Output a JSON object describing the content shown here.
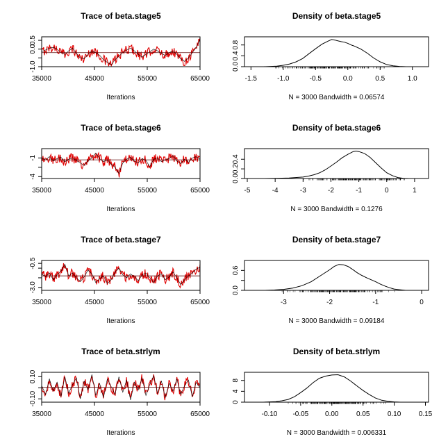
{
  "figure": {
    "background": "#ffffff"
  },
  "chart_data": [
    {
      "type": "line",
      "panel": "trace",
      "title": "Trace of beta.stage5",
      "xlabel": "Iterations",
      "xlim": [
        35000,
        65000
      ],
      "xticks": [
        35000,
        45000,
        55000,
        65000
      ],
      "xtick_labels": [
        "35000",
        "45000",
        "55000",
        "65000"
      ],
      "ylim": [
        -1.0,
        0.7
      ],
      "yticks": [
        -1.0,
        -0.5,
        0.0,
        0.5
      ],
      "ytick_labels": [
        "-1.0",
        "",
        "0.0",
        "0.5"
      ],
      "series": [
        {
          "values": [
            -0.15,
            -0.05,
            0.05,
            0.1,
            0.0,
            -0.2,
            -0.3,
            -0.1,
            0.05,
            -0.25,
            -0.5,
            -0.55,
            -0.3,
            -0.1,
            -0.2,
            -0.35,
            -0.6,
            -0.75,
            -0.9,
            -0.6,
            -0.4,
            -0.2,
            -0.05,
            0.05,
            -0.1,
            -0.3,
            -0.45,
            -0.3,
            -0.15,
            0.0,
            -0.1,
            -0.25,
            -0.35,
            -0.2,
            -0.1,
            -0.3,
            -0.55,
            -0.7,
            -0.5,
            -0.2,
            0.1,
            0.55
          ]
        },
        {
          "values": [
            -0.2,
            -0.2
          ]
        }
      ],
      "colors": [
        "#000000",
        "#e00000"
      ]
    },
    {
      "type": "area",
      "panel": "density",
      "title": "Density of beta.stage5",
      "xlabel": "N = 3000   Bandwidth = 0.06574",
      "xlim": [
        -1.6,
        1.25
      ],
      "xticks": [
        -1.5,
        -1.0,
        -0.5,
        0.0,
        0.5,
        1.0
      ],
      "xtick_labels": [
        "-1.5",
        "-1.0",
        "-0.5",
        "0.0",
        "0.5",
        "1.0"
      ],
      "ylim": [
        0,
        1.1
      ],
      "yticks": [
        0.0,
        0.4,
        0.8
      ],
      "ytick_labels": [
        "0.0",
        "0.4",
        "0.8"
      ],
      "x": [
        -1.3,
        -1.1,
        -1.0,
        -0.9,
        -0.8,
        -0.7,
        -0.6,
        -0.5,
        -0.4,
        -0.3,
        -0.25,
        -0.2,
        -0.15,
        -0.1,
        -0.05,
        0.0,
        0.05,
        0.1,
        0.2,
        0.3,
        0.4,
        0.5,
        0.6,
        0.7,
        0.8,
        0.9
      ],
      "y": [
        0.0,
        0.02,
        0.05,
        0.1,
        0.18,
        0.3,
        0.48,
        0.66,
        0.83,
        0.95,
        1.0,
        0.98,
        0.95,
        0.92,
        0.9,
        0.86,
        0.8,
        0.76,
        0.65,
        0.5,
        0.32,
        0.18,
        0.08,
        0.03,
        0.01,
        0.0
      ],
      "rug": true,
      "colors": [
        "#000000"
      ]
    },
    {
      "type": "line",
      "panel": "trace",
      "title": "Trace of beta.stage6",
      "xlabel": "Iterations",
      "xlim": [
        35000,
        65000
      ],
      "xticks": [
        35000,
        45000,
        55000,
        65000
      ],
      "xtick_labels": [
        "35000",
        "45000",
        "55000",
        "65000"
      ],
      "ylim": [
        -4.3,
        0.5
      ],
      "yticks": [
        -4.0,
        -2.5,
        -1.0
      ],
      "ytick_labels": [
        "-4",
        "",
        "-1"
      ],
      "series": [
        {
          "values": [
            -1.0,
            -1.3,
            -0.8,
            -1.5,
            -1.1,
            -0.9,
            -1.6,
            -1.2,
            -1.0,
            -1.4,
            -1.8,
            -2.2,
            -1.5,
            -1.0,
            -0.2,
            -1.1,
            -1.6,
            -1.3,
            -2.0,
            -2.5,
            -3.5,
            -1.8,
            -1.2,
            -0.9,
            -1.5,
            -1.8,
            -1.1,
            -1.4,
            -2.4,
            -1.2,
            -1.0,
            -1.6,
            -1.3,
            -1.1,
            -0.6,
            -1.5,
            -1.9,
            -1.2,
            -1.7,
            -1.0,
            -0.8,
            -1.2
          ]
        },
        {
          "values": [
            -1.3,
            -1.3
          ]
        }
      ],
      "colors": [
        "#000000",
        "#e00000"
      ]
    },
    {
      "type": "area",
      "panel": "density",
      "title": "Density of beta.stage6",
      "xlabel": "N = 3000   Bandwidth = 0.1276",
      "xlim": [
        -5.1,
        1.5
      ],
      "xticks": [
        -5,
        -4,
        -3,
        -2,
        -1,
        0,
        1
      ],
      "xtick_labels": [
        "-5",
        "-4",
        "-3",
        "-2",
        "-1",
        "0",
        "1"
      ],
      "ylim": [
        0,
        0.62
      ],
      "yticks": [
        0.0,
        0.2,
        0.4
      ],
      "ytick_labels": [
        "0.0",
        "0.2",
        "0.4"
      ],
      "x": [
        -4.4,
        -4.0,
        -3.5,
        -3.0,
        -2.8,
        -2.6,
        -2.4,
        -2.2,
        -2.0,
        -1.8,
        -1.6,
        -1.4,
        -1.2,
        -1.1,
        -1.0,
        -0.8,
        -0.6,
        -0.4,
        -0.2,
        0.0,
        0.2,
        0.4,
        0.6,
        0.8
      ],
      "y": [
        0.0,
        0.003,
        0.01,
        0.03,
        0.05,
        0.08,
        0.12,
        0.18,
        0.26,
        0.34,
        0.43,
        0.5,
        0.56,
        0.57,
        0.56,
        0.52,
        0.44,
        0.33,
        0.22,
        0.12,
        0.06,
        0.02,
        0.005,
        0.0
      ],
      "rug": true,
      "colors": [
        "#000000"
      ]
    },
    {
      "type": "line",
      "panel": "trace",
      "title": "Trace of beta.stage7",
      "xlabel": "Iterations",
      "xlim": [
        35000,
        65000
      ],
      "xticks": [
        35000,
        45000,
        55000,
        65000
      ],
      "xtick_labels": [
        "35000",
        "45000",
        "55000",
        "65000"
      ],
      "ylim": [
        -3.3,
        -0.2
      ],
      "yticks": [
        -3.0,
        -2.0,
        -1.0,
        -0.5
      ],
      "ytick_labels": [
        "-3.0",
        "",
        "",
        "-0.5"
      ],
      "series": [
        {
          "values": [
            -1.6,
            -1.9,
            -1.5,
            -2.2,
            -1.7,
            -1.3,
            -0.6,
            -1.8,
            -1.5,
            -2.0,
            -2.4,
            -1.9,
            -1.2,
            -1.6,
            -2.5,
            -2.1,
            -1.8,
            -2.6,
            -2.2,
            -1.4,
            -1.0,
            -1.7,
            -2.0,
            -1.6,
            -1.9,
            -2.3,
            -1.7,
            -1.5,
            -2.0,
            -2.5,
            -1.8,
            -1.6,
            -2.2,
            -1.9,
            -1.4,
            -2.0,
            -2.7,
            -2.2,
            -1.8,
            -1.5,
            -1.1,
            -0.9
          ]
        },
        {
          "values": [
            -1.8,
            -1.8
          ]
        }
      ],
      "colors": [
        "#000000",
        "#e00000"
      ]
    },
    {
      "type": "area",
      "panel": "density",
      "title": "Density of beta.stage7",
      "xlabel": "N = 3000   Bandwidth = 0.09184",
      "xlim": [
        -3.85,
        0.15
      ],
      "xticks": [
        -3,
        -2,
        -1,
        0
      ],
      "xtick_labels": [
        "-3",
        "-2",
        "-1",
        "0"
      ],
      "ylim": [
        0,
        0.9
      ],
      "yticks": [
        0.0,
        0.3,
        0.6
      ],
      "ytick_labels": [
        "0.0",
        "",
        "0.6"
      ],
      "x": [
        -3.4,
        -3.2,
        -3.0,
        -2.8,
        -2.6,
        -2.4,
        -2.2,
        -2.0,
        -1.9,
        -1.8,
        -1.7,
        -1.6,
        -1.5,
        -1.4,
        -1.3,
        -1.2,
        -1.1,
        -1.0,
        -0.9,
        -0.8,
        -0.7,
        -0.6,
        -0.5,
        -0.35
      ],
      "y": [
        0.0,
        0.01,
        0.03,
        0.07,
        0.14,
        0.26,
        0.44,
        0.62,
        0.72,
        0.78,
        0.77,
        0.72,
        0.63,
        0.53,
        0.45,
        0.38,
        0.32,
        0.26,
        0.19,
        0.13,
        0.08,
        0.04,
        0.02,
        0.0
      ],
      "rug": true,
      "colors": [
        "#000000"
      ]
    },
    {
      "type": "line",
      "panel": "trace",
      "title": "Trace of beta.strlym",
      "xlabel": "Iterations",
      "xlim": [
        35000,
        65000
      ],
      "xticks": [
        35000,
        45000,
        55000,
        65000
      ],
      "xtick_labels": [
        "35000",
        "45000",
        "55000",
        "65000"
      ],
      "ylim": [
        -0.13,
        0.14
      ],
      "yticks": [
        -0.1,
        0.0,
        0.1
      ],
      "ytick_labels": [
        "-0.10",
        "",
        "0.10"
      ],
      "series": [
        {
          "values": [
            0.02,
            -0.06,
            0.08,
            -0.03,
            0.05,
            -0.08,
            0.1,
            -0.05,
            0.03,
            0.09,
            -0.1,
            0.06,
            -0.02,
            0.12,
            -0.07,
            0.04,
            -0.09,
            0.08,
            0.01,
            -0.06,
            0.1,
            -0.04,
            0.07,
            -0.11,
            0.05,
            -0.02,
            0.09,
            -0.07,
            0.03,
            0.11,
            -0.05,
            0.06,
            -0.09,
            0.04,
            -0.03,
            0.08,
            -0.06,
            0.02,
            0.07,
            -0.08,
            0.05,
            0.0
          ]
        },
        {
          "values": [
            0.005,
            0.005
          ]
        }
      ],
      "colors": [
        "#000000",
        "#e00000"
      ]
    },
    {
      "type": "area",
      "panel": "density",
      "title": "Density of beta.strlym",
      "xlabel": "N = 3000   Bandwidth = 0.006331",
      "xlim": [
        -0.14,
        0.155
      ],
      "xticks": [
        -0.1,
        -0.05,
        0.0,
        0.05,
        0.1,
        0.15
      ],
      "xtick_labels": [
        "-0.10",
        "-0.05",
        "0.00",
        "0.05",
        "0.10",
        "0.15"
      ],
      "ylim": [
        0,
        11
      ],
      "yticks": [
        0,
        4,
        8
      ],
      "ytick_labels": [
        "0",
        "4",
        "8"
      ],
      "x": [
        -0.11,
        -0.09,
        -0.08,
        -0.07,
        -0.06,
        -0.05,
        -0.04,
        -0.03,
        -0.02,
        -0.01,
        0.0,
        0.01,
        0.02,
        0.03,
        0.04,
        0.05,
        0.06,
        0.07,
        0.08,
        0.09,
        0.1,
        0.11
      ],
      "y": [
        0.0,
        0.2,
        0.5,
        1.0,
        2.0,
        3.5,
        5.2,
        7.2,
        8.8,
        9.6,
        10.0,
        10.1,
        9.3,
        7.8,
        6.0,
        4.3,
        2.8,
        1.5,
        0.7,
        0.3,
        0.1,
        0.0
      ],
      "rug": true,
      "colors": [
        "#000000"
      ]
    }
  ]
}
